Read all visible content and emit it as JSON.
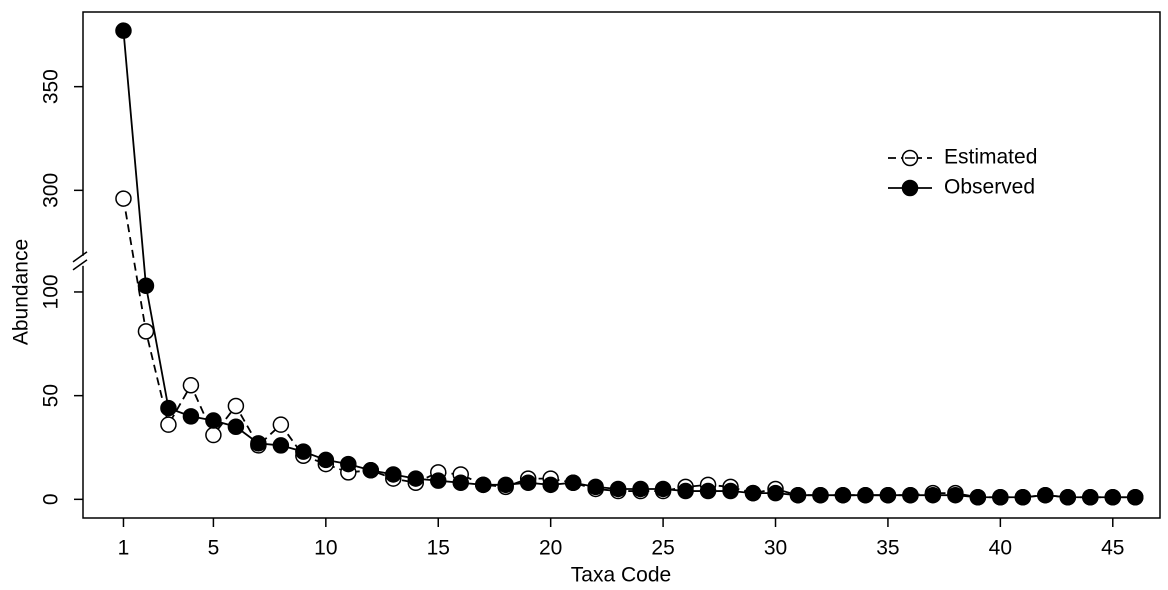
{
  "chart_data": {
    "type": "line",
    "x_label": "Taxa Code",
    "y_label": "Abundance",
    "x": [
      1,
      2,
      3,
      4,
      5,
      6,
      7,
      8,
      9,
      10,
      11,
      12,
      13,
      14,
      15,
      16,
      17,
      18,
      19,
      20,
      21,
      22,
      23,
      24,
      25,
      26,
      27,
      28,
      29,
      30,
      31,
      32,
      33,
      34,
      35,
      36,
      37,
      38,
      39,
      40,
      41,
      42,
      43,
      44,
      45,
      46
    ],
    "series": [
      {
        "name": "Estimated",
        "color": "#000000",
        "linestyle": "dashed",
        "marker": "open",
        "values": [
          296,
          81,
          36,
          55,
          31,
          45,
          26,
          36,
          21,
          17,
          13,
          14,
          10,
          8,
          13,
          12,
          7,
          6,
          10,
          10,
          8,
          5,
          4,
          4,
          4,
          6,
          7,
          6,
          3,
          5,
          2,
          2,
          2,
          2,
          2,
          2,
          3,
          3,
          1,
          1,
          1,
          2,
          1,
          1,
          1,
          1
        ]
      },
      {
        "name": "Observed",
        "color": "#000000",
        "linestyle": "solid",
        "marker": "filled",
        "values": [
          377,
          103,
          44,
          40,
          38,
          35,
          27,
          26,
          23,
          19,
          17,
          14,
          12,
          10,
          9,
          8,
          7,
          7,
          8,
          7,
          8,
          6,
          5,
          5,
          5,
          4,
          4,
          4,
          3,
          3,
          2,
          2,
          2,
          2,
          2,
          2,
          2,
          2,
          1,
          1,
          1,
          2,
          1,
          1,
          1,
          1
        ]
      }
    ],
    "xlim": [
      -0.8,
      47.1
    ],
    "xticks": [
      1,
      5,
      10,
      15,
      20,
      25,
      30,
      35,
      40,
      45
    ],
    "ylim": [
      -9,
      386
    ],
    "ybreak": [
      115,
      266
    ],
    "yticks": [
      0,
      50,
      100,
      300,
      350
    ],
    "legend": "right"
  }
}
